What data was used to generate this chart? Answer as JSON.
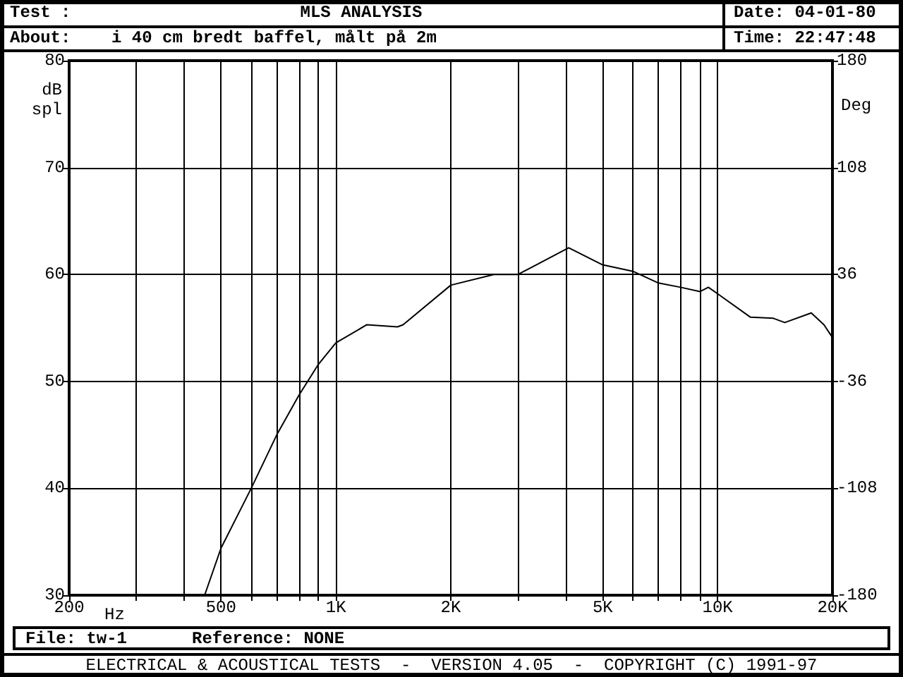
{
  "chart_data": {
    "type": "line",
    "title": "MLS ANALYSIS",
    "xlabel": "Hz",
    "ylabel": "dB spl",
    "y2label": "Deg",
    "annotations": [
      "Test :",
      "About:    i 40 cm bredt baffel, målt på 2m",
      "Date: 04-01-80",
      "Time: 22:47:48",
      "File: tw-1",
      "Reference: NONE",
      "ELECTRICAL & ACOUSTICAL TESTS  -  VERSION 4.05  -  COPYRIGHT (C) 1991-97"
    ],
    "log": "x",
    "xlim": [
      200,
      20000
    ],
    "xticks": [
      200,
      {
        "value": 300,
        "label": null
      },
      {
        "value": 400,
        "label": null
      },
      500,
      {
        "value": 600,
        "label": null
      },
      {
        "value": 700,
        "label": null
      },
      {
        "value": 800,
        "label": null
      },
      {
        "value": 900,
        "label": null
      },
      {
        "value": 1000,
        "label": "1K"
      },
      {
        "value": 2000,
        "label": "2K"
      },
      {
        "value": 3000,
        "label": null
      },
      {
        "value": 4000,
        "label": null
      },
      {
        "value": 5000,
        "label": "5K"
      },
      {
        "value": 6000,
        "label": null
      },
      {
        "value": 7000,
        "label": null
      },
      {
        "value": 8000,
        "label": null
      },
      {
        "value": 9000,
        "label": null
      },
      {
        "value": 10000,
        "label": "10K"
      },
      {
        "value": 20000,
        "label": "20K"
      }
    ],
    "ylim": [
      30,
      80
    ],
    "yticks": [
      30,
      40,
      50,
      60,
      70,
      80
    ],
    "y2lim": [
      -180,
      180
    ],
    "y2ticks": [
      -180,
      -108,
      -36,
      36,
      108,
      180
    ],
    "grid": true,
    "marker": "none",
    "line_style": "solid",
    "x": [
      453,
      500,
      600,
      700,
      800,
      900,
      1000,
      1205,
      1450,
      1500,
      2000,
      2594,
      3000,
      4073,
      5000,
      6000,
      7000,
      8000,
      9000,
      9460,
      10000,
      12200,
      14000,
      15000,
      17600,
      19000,
      20000
    ],
    "series": [
      {
        "color": "#000000",
        "values": [
          30,
          34.4,
          40,
          45,
          48.7,
          51.6,
          53.6,
          55.3,
          55.1,
          55.3,
          59,
          60,
          60,
          62.5,
          60.9,
          60.3,
          59.2,
          58.8,
          58.4,
          58.8,
          58.2,
          56,
          55.9,
          55.5,
          56.4,
          55.3,
          54.1
        ]
      }
    ]
  }
}
